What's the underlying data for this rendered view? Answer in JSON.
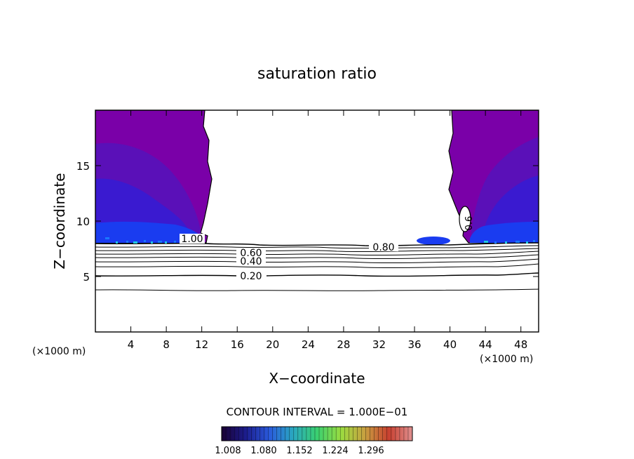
{
  "chart_data": {
    "type": "contour",
    "title": "saturation ratio",
    "xlabel": "X−coordinate",
    "ylabel": "Z−coordinate",
    "x_unit_left": "(×1000 m)",
    "x_unit_right": "(×1000 m)",
    "xlim": [
      0,
      50
    ],
    "ylim": [
      0,
      20
    ],
    "x_ticks": [
      4,
      8,
      12,
      16,
      20,
      24,
      28,
      32,
      36,
      40,
      44,
      48
    ],
    "y_ticks": [
      5,
      10,
      15
    ],
    "contour_labels": [
      {
        "text": "1.00",
        "x": 11,
        "y": 8.3
      },
      {
        "text": "0.80",
        "x": 32,
        "y": 7.6
      },
      {
        "text": "0.60",
        "x": 17.5,
        "y": 7.1
      },
      {
        "text": "0.40",
        "x": 17.5,
        "y": 6.4
      },
      {
        "text": "0.20",
        "x": 17.5,
        "y": 5.1
      },
      {
        "text": "0.6",
        "x": 42,
        "y": 9.8
      }
    ],
    "contour_interval_text": "CONTOUR INTERVAL = 1.000E−01",
    "colorbar": {
      "labels": [
        "1.008",
        "1.080",
        "1.152",
        "1.224",
        "1.296"
      ],
      "colors": [
        "#1a0033",
        "#1c1c8c",
        "#2a5adc",
        "#2aa8c0",
        "#3ad070",
        "#9adc40",
        "#c8a040",
        "#c84030",
        "#e09090"
      ]
    },
    "fill_colors": {
      "purple": "#7a00a8",
      "violet": "#5a10b8",
      "indigo": "#3a1ad0",
      "blue": "#1a3cf0",
      "bright_blue": "#1a78ff",
      "cyan": "#20c8e0"
    }
  }
}
